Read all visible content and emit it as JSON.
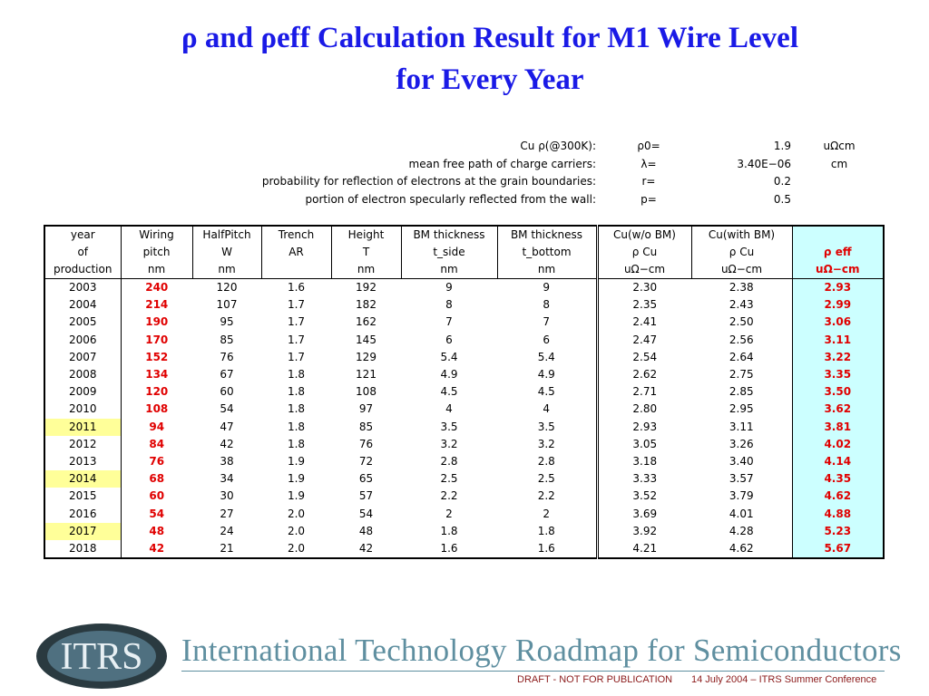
{
  "title": {
    "line1": "ρ and ρeff Calculation Result for M1 Wire Level",
    "line2": "for Every Year"
  },
  "parameters": [
    [
      "Cu ρ(@300K):",
      "ρ0=",
      "1.9",
      "uΩcm"
    ],
    [
      "mean free path of charge carriers:",
      "λ=",
      "3.40E−06",
      "cm"
    ],
    [
      "probability for reflection of electrons at the grain boundaries:",
      "r=",
      "0.2"
    ],
    [
      "portion of electron specularly reflected from the wall:",
      "p=",
      "0.5"
    ]
  ],
  "table": {
    "header_rows": [
      [
        "year",
        "Wiring",
        "HalfPitch",
        "Trench",
        "Height",
        "BM thickness",
        "BM thickness",
        "Cu(w/o BM)",
        "Cu(with BM)",
        null
      ],
      [
        "of",
        "pitch",
        "W",
        "AR",
        "T",
        "t_side",
        "t_bottom",
        "ρ Cu",
        "ρ Cu",
        "ρ eff"
      ],
      [
        "production",
        "nm",
        "nm",
        null,
        "nm",
        "nm",
        "nm",
        "uΩ−cm",
        "uΩ−cm",
        "uΩ−cm"
      ]
    ],
    "rows": [
      {
        "cells": [
          "2003",
          "240",
          "120",
          "1.6",
          "192",
          "9",
          "9",
          "2.30",
          "2.38",
          "2.93"
        ]
      },
      {
        "cells": [
          "2004",
          "214",
          "107",
          "1.7",
          "182",
          "8",
          "8",
          "2.35",
          "2.43",
          "2.99"
        ]
      },
      {
        "cells": [
          "2005",
          "190",
          "95",
          "1.7",
          "162",
          "7",
          "7",
          "2.41",
          "2.50",
          "3.06"
        ]
      },
      {
        "cells": [
          "2006",
          "170",
          "85",
          "1.7",
          "145",
          "6",
          "6",
          "2.47",
          "2.56",
          "3.11"
        ]
      },
      {
        "cells": [
          "2007",
          "152",
          "76",
          "1.7",
          "129",
          "5.4",
          "5.4",
          "2.54",
          "2.64",
          "3.22"
        ]
      },
      {
        "cells": [
          "2008",
          "134",
          "67",
          "1.8",
          "121",
          "4.9",
          "4.9",
          "2.62",
          "2.75",
          "3.35"
        ]
      },
      {
        "cells": [
          "2009",
          "120",
          "60",
          "1.8",
          "108",
          "4.5",
          "4.5",
          "2.71",
          "2.85",
          "3.50"
        ]
      },
      {
        "cells": [
          "2010",
          "108",
          "54",
          "1.8",
          "97",
          "4",
          "4",
          "2.80",
          "2.95",
          "3.62"
        ]
      },
      {
        "cells": [
          "2011",
          "94",
          "47",
          "1.8",
          "85",
          "3.5",
          "3.5",
          "2.93",
          "3.11",
          "3.81"
        ],
        "highlight": true
      },
      {
        "cells": [
          "2012",
          "84",
          "42",
          "1.8",
          "76",
          "3.2",
          "3.2",
          "3.05",
          "3.26",
          "4.02"
        ]
      },
      {
        "cells": [
          "2013",
          "76",
          "38",
          "1.9",
          "72",
          "2.8",
          "2.8",
          "3.18",
          "3.40",
          "4.14"
        ]
      },
      {
        "cells": [
          "2014",
          "68",
          "34",
          "1.9",
          "65",
          "2.5",
          "2.5",
          "3.33",
          "3.57",
          "4.35"
        ],
        "highlight": true
      },
      {
        "cells": [
          "2015",
          "60",
          "30",
          "1.9",
          "57",
          "2.2",
          "2.2",
          "3.52",
          "3.79",
          "4.62"
        ]
      },
      {
        "cells": [
          "2016",
          "54",
          "27",
          "2.0",
          "54",
          "2",
          "2",
          "3.69",
          "4.01",
          "4.88"
        ]
      },
      {
        "cells": [
          "2017",
          "48",
          "24",
          "2.0",
          "48",
          "1.8",
          "1.8",
          "3.92",
          "4.28",
          "5.23"
        ],
        "highlight": true
      },
      {
        "cells": [
          "2018",
          "42",
          "21",
          "2.0",
          "42",
          "1.6",
          "1.6",
          "4.21",
          "4.62",
          "5.67"
        ]
      }
    ]
  },
  "footer": {
    "logo": "ITRS",
    "name": "International Technology Roadmap for Semiconductors",
    "draft": "DRAFT - NOT FOR PUBLICATION",
    "event": "14 July 2004 – ITRS Summer Conference"
  }
}
